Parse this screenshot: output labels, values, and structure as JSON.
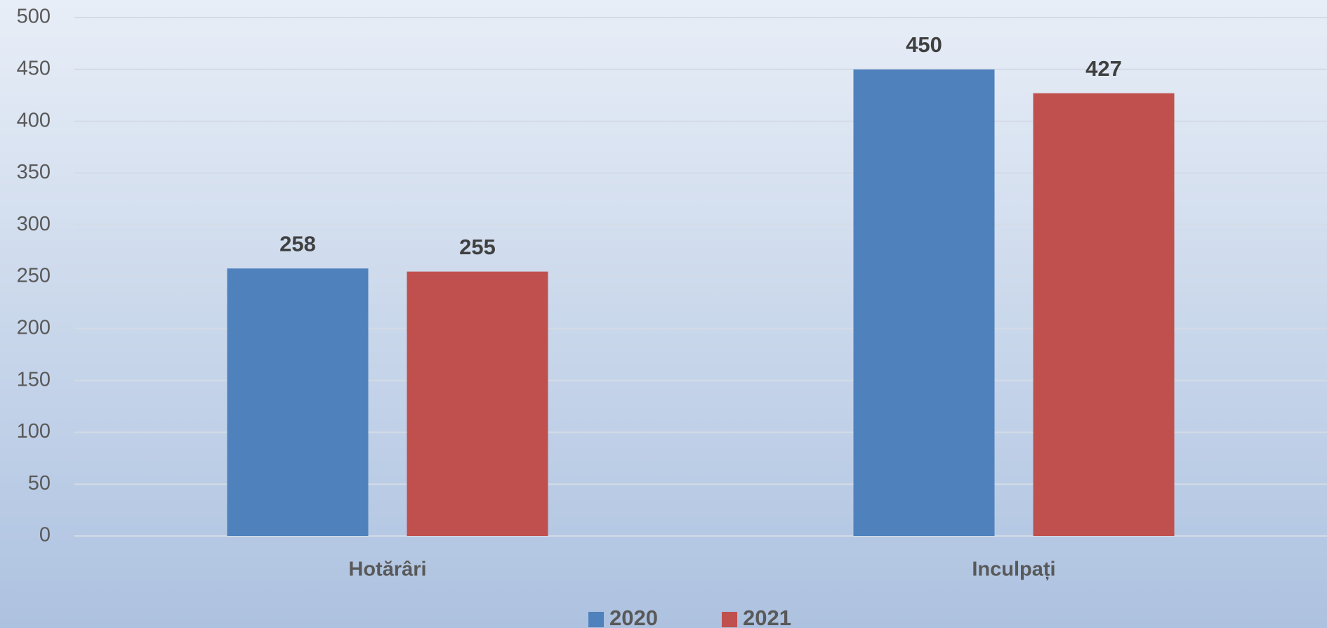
{
  "chart_data": {
    "type": "bar",
    "categories": [
      "Hotărâri",
      "Inculpați"
    ],
    "series": [
      {
        "name": "2020",
        "color": "#4f81bd",
        "values": [
          258,
          450
        ]
      },
      {
        "name": "2021",
        "color": "#c0504d",
        "values": [
          255,
          427
        ]
      }
    ],
    "ylim": [
      0,
      500
    ],
    "yticks": [
      0,
      50,
      100,
      150,
      200,
      250,
      300,
      350,
      400,
      450,
      500
    ],
    "grid": true,
    "legend": "bottom"
  }
}
